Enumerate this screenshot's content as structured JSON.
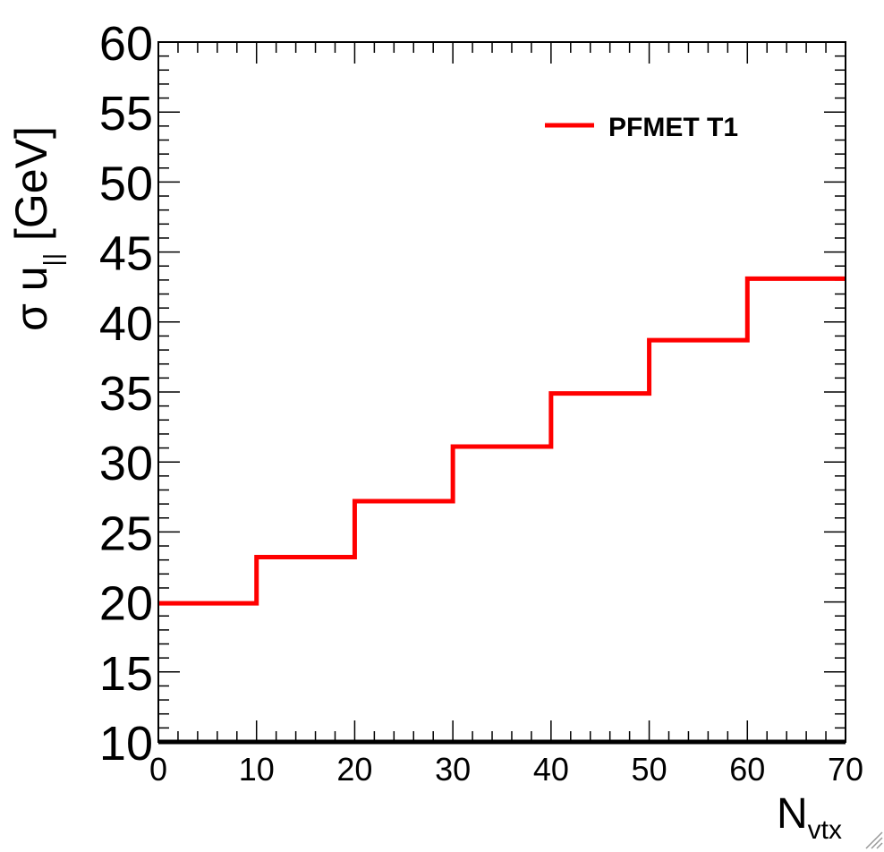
{
  "chart_data": {
    "type": "line",
    "step": true,
    "bin_edges": [
      0,
      10,
      20,
      30,
      40,
      50,
      60,
      70
    ],
    "series": [
      {
        "name": "PFMET T1",
        "values": [
          19.9,
          23.2,
          27.2,
          31.1,
          34.9,
          38.7,
          43.1
        ]
      }
    ],
    "xlim": [
      0,
      70
    ],
    "ylim": [
      10,
      60
    ],
    "x_ticks": [
      0,
      10,
      20,
      30,
      40,
      50,
      60,
      70
    ],
    "y_ticks": [
      10,
      15,
      20,
      25,
      30,
      35,
      40,
      45,
      50,
      55,
      60
    ],
    "x_tick_labels": [
      "0",
      "10",
      "20",
      "30",
      "40",
      "50",
      "60",
      "70"
    ],
    "y_tick_labels": [
      "10",
      "15",
      "20",
      "25",
      "30",
      "35",
      "40",
      "45",
      "50",
      "55",
      "60"
    ],
    "xlabel": {
      "main": "N",
      "sub": "vtx"
    },
    "ylabel": {
      "prefix": "σ u",
      "sub": "||",
      "suffix": " [GeV]"
    },
    "legend_placement": "top-right",
    "grid": false,
    "line_color": "#ff0000"
  }
}
